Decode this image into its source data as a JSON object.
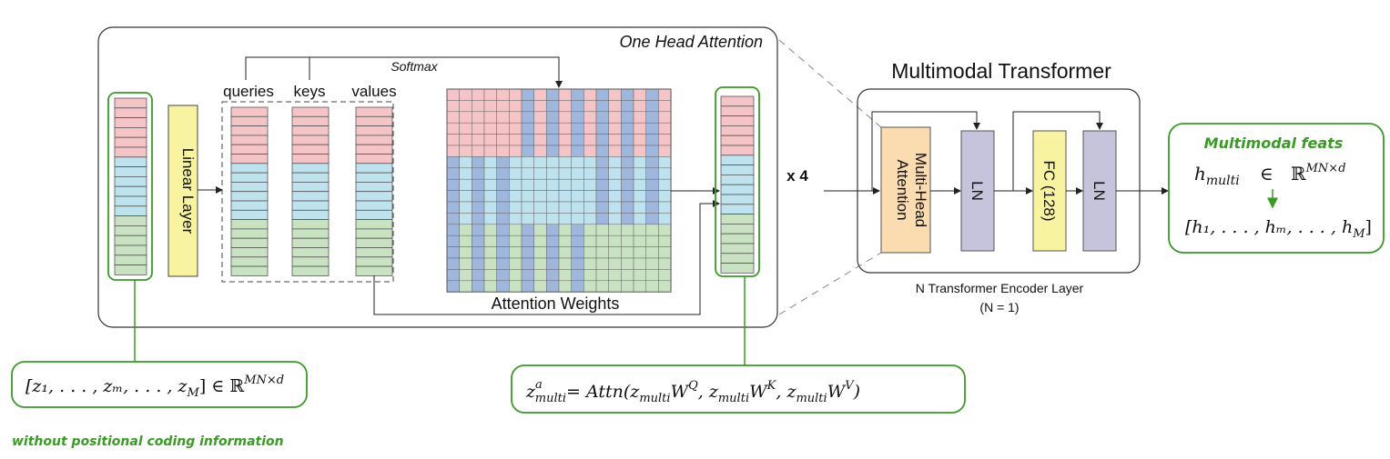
{
  "attention_block": {
    "title": "One Head Attention",
    "softmax_label": "Softmax",
    "qkv_labels": [
      "queries",
      "keys",
      "values"
    ],
    "linear_layer_label": "Linear Layer",
    "attention_weights_label": "Attention Weights",
    "repeat_label": "x 4"
  },
  "transformer": {
    "title": "Multimodal Transformer",
    "mha_label_line1": "Multi-Head",
    "mha_label_line2": "Attention",
    "ln1_label": "LN",
    "fc_label": "FC (128)",
    "ln2_label": "LN",
    "caption_line1": "N Transformer Encoder Layer",
    "caption_line2": "(N = 1)"
  },
  "output": {
    "title": "Multimodal feats",
    "h_multi_symbol": "h",
    "h_multi_sub": "multi",
    "in_symbol": "∈",
    "space_symbol": "ℝ",
    "space_sup": "MN×d",
    "h_list": "[h₁, . . . , hₘ, . . . , h",
    "h_list_last_sub": "M",
    "h_list_close": "]"
  },
  "input_formula": {
    "text": "[z₁, . . . , zₘ, . . . , z",
    "last_sub": "M",
    "close": "] ∈ ℝ",
    "sup": "MN×d"
  },
  "attn_formula": {
    "lhs": "z",
    "lhs_sup": "a",
    "lhs_sub": "multi",
    "rhs": "= Attn(z",
    "arg_sub": "multi",
    "w": "W",
    "q": "Q",
    "k": "K",
    "v": "V",
    "sep": ", z"
  },
  "note": "without positional coding information",
  "colors": {
    "red": "#f5c4c7",
    "blue": "#bfe3ee",
    "green": "#c9e2c2",
    "yellow": "#f7f3a0",
    "orange": "#fbdcb0",
    "purple": "#c5c4dc",
    "accent": "#3a9a26"
  }
}
